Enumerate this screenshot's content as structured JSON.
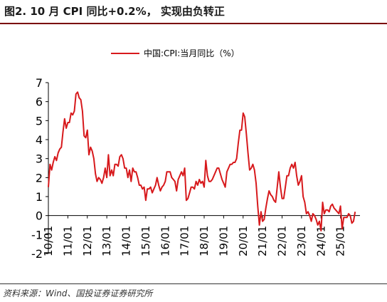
{
  "title": "图2. 10 月 CPI 同比+0.2%， 实现由负转正",
  "source": "资料来源：Wind、国投证券证券研究所",
  "colors": {
    "series": "#d7191c",
    "title_rule": "#7a0000"
  },
  "chart_data": {
    "type": "line",
    "title": "图2. 10 月 CPI 同比+0.2%， 实现由负转正",
    "xlabel": "",
    "ylabel": "",
    "ylim": [
      -2,
      7
    ],
    "yticks": [
      -2,
      -1,
      0,
      1,
      2,
      3,
      4,
      5,
      6,
      7
    ],
    "xtick_labels": [
      "10/01",
      "11/01",
      "12/01",
      "13/01",
      "14/01",
      "15/01",
      "16/01",
      "17/01",
      "18/01",
      "19/01",
      "20/01",
      "21/01",
      "22/01",
      "23/01",
      "24/01",
      "25/01"
    ],
    "legend": "top-center",
    "grid": false,
    "series": [
      {
        "name": "中国:CPI:当月同比（%）",
        "x": [
          2010.0,
          2010.083,
          2010.167,
          2010.25,
          2010.333,
          2010.417,
          2010.5,
          2010.583,
          2010.667,
          2010.75,
          2010.833,
          2010.917,
          2011.0,
          2011.083,
          2011.167,
          2011.25,
          2011.333,
          2011.417,
          2011.5,
          2011.583,
          2011.667,
          2011.75,
          2011.833,
          2011.917,
          2012.0,
          2012.083,
          2012.167,
          2012.25,
          2012.333,
          2012.417,
          2012.5,
          2012.583,
          2012.667,
          2012.75,
          2012.833,
          2012.917,
          2013.0,
          2013.083,
          2013.167,
          2013.25,
          2013.333,
          2013.417,
          2013.5,
          2013.583,
          2013.667,
          2013.75,
          2013.833,
          2013.917,
          2014.0,
          2014.083,
          2014.167,
          2014.25,
          2014.333,
          2014.417,
          2014.5,
          2014.583,
          2014.667,
          2014.75,
          2014.833,
          2014.917,
          2015.0,
          2015.083,
          2015.167,
          2015.25,
          2015.333,
          2015.417,
          2015.5,
          2015.583,
          2015.667,
          2015.75,
          2015.833,
          2015.917,
          2016.0,
          2016.083,
          2016.167,
          2016.25,
          2016.333,
          2016.417,
          2016.5,
          2016.583,
          2016.667,
          2016.75,
          2016.833,
          2016.917,
          2017.0,
          2017.083,
          2017.167,
          2017.25,
          2017.333,
          2017.417,
          2017.5,
          2017.583,
          2017.667,
          2017.75,
          2017.833,
          2017.917,
          2018.0,
          2018.083,
          2018.167,
          2018.25,
          2018.333,
          2018.417,
          2018.5,
          2018.583,
          2018.667,
          2018.75,
          2018.833,
          2018.917,
          2019.0,
          2019.083,
          2019.167,
          2019.25,
          2019.333,
          2019.417,
          2019.5,
          2019.583,
          2019.667,
          2019.75,
          2019.833,
          2019.917,
          2020.0,
          2020.083,
          2020.167,
          2020.25,
          2020.333,
          2020.417,
          2020.5,
          2020.583,
          2020.667,
          2020.75,
          2020.833,
          2020.917,
          2021.0,
          2021.083,
          2021.167,
          2021.25,
          2021.333,
          2021.417,
          2021.5,
          2021.583,
          2021.667,
          2021.75,
          2021.833,
          2021.917,
          2022.0,
          2022.083,
          2022.167,
          2022.25,
          2022.333,
          2022.417,
          2022.5,
          2022.583,
          2022.667,
          2022.75,
          2022.833,
          2022.917,
          2023.0,
          2023.083,
          2023.167,
          2023.25,
          2023.333,
          2023.417,
          2023.5,
          2023.583,
          2023.667,
          2023.75,
          2023.833,
          2023.917,
          2024.0,
          2024.083,
          2024.167,
          2024.25,
          2024.333,
          2024.417,
          2024.5,
          2024.583,
          2024.667,
          2024.75,
          2024.833,
          2024.917,
          2025.0,
          2025.083,
          2025.167,
          2025.25,
          2025.333,
          2025.417,
          2025.5,
          2025.583,
          2025.667,
          2025.75
        ],
        "y": [
          1.5,
          2.7,
          2.4,
          2.8,
          3.1,
          2.9,
          3.3,
          3.5,
          3.6,
          4.4,
          5.1,
          4.6,
          4.9,
          4.9,
          5.4,
          5.3,
          5.5,
          6.4,
          6.5,
          6.2,
          6.1,
          5.5,
          4.2,
          4.1,
          4.5,
          3.2,
          3.6,
          3.4,
          3.0,
          2.2,
          1.8,
          2.0,
          1.9,
          1.7,
          2.0,
          2.5,
          2.0,
          3.2,
          2.1,
          2.4,
          2.1,
          2.7,
          2.7,
          2.6,
          3.1,
          3.2,
          3.0,
          2.5,
          2.5,
          2.0,
          2.4,
          1.8,
          2.5,
          2.3,
          2.3,
          2.0,
          1.6,
          1.6,
          1.4,
          1.5,
          0.8,
          1.4,
          1.4,
          1.5,
          1.2,
          1.4,
          1.6,
          2.0,
          1.6,
          1.3,
          1.5,
          1.6,
          1.8,
          2.3,
          2.3,
          2.3,
          2.0,
          1.9,
          1.8,
          1.3,
          1.9,
          2.1,
          2.3,
          2.1,
          2.5,
          0.8,
          0.9,
          1.2,
          1.5,
          1.5,
          1.4,
          1.8,
          1.6,
          1.9,
          1.7,
          1.8,
          1.5,
          2.9,
          2.1,
          1.8,
          1.8,
          1.9,
          2.1,
          2.3,
          2.5,
          2.5,
          2.2,
          1.9,
          1.7,
          1.5,
          2.3,
          2.5,
          2.7,
          2.7,
          2.8,
          2.8,
          3.0,
          3.8,
          4.5,
          4.5,
          5.4,
          5.2,
          4.3,
          3.3,
          2.4,
          2.5,
          2.7,
          2.4,
          1.7,
          0.5,
          -0.5,
          0.2,
          -0.3,
          -0.2,
          0.4,
          0.9,
          1.3,
          1.1,
          1.0,
          0.8,
          0.7,
          1.5,
          2.3,
          1.5,
          0.9,
          0.9,
          1.5,
          2.1,
          2.1,
          2.5,
          2.7,
          2.5,
          2.8,
          2.1,
          1.6,
          1.8,
          2.1,
          1.0,
          0.7,
          0.1,
          0.2,
          0.0,
          -0.3,
          0.1,
          0.0,
          -0.2,
          -0.5,
          -0.3,
          -0.8,
          0.7,
          0.1,
          0.3,
          0.3,
          0.2,
          0.5,
          0.6,
          0.4,
          0.3,
          0.2,
          0.1,
          0.5,
          -0.7,
          -0.1,
          -0.1,
          -0.1,
          0.1,
          0.0,
          -0.4,
          -0.3,
          0.2
        ]
      }
    ]
  }
}
